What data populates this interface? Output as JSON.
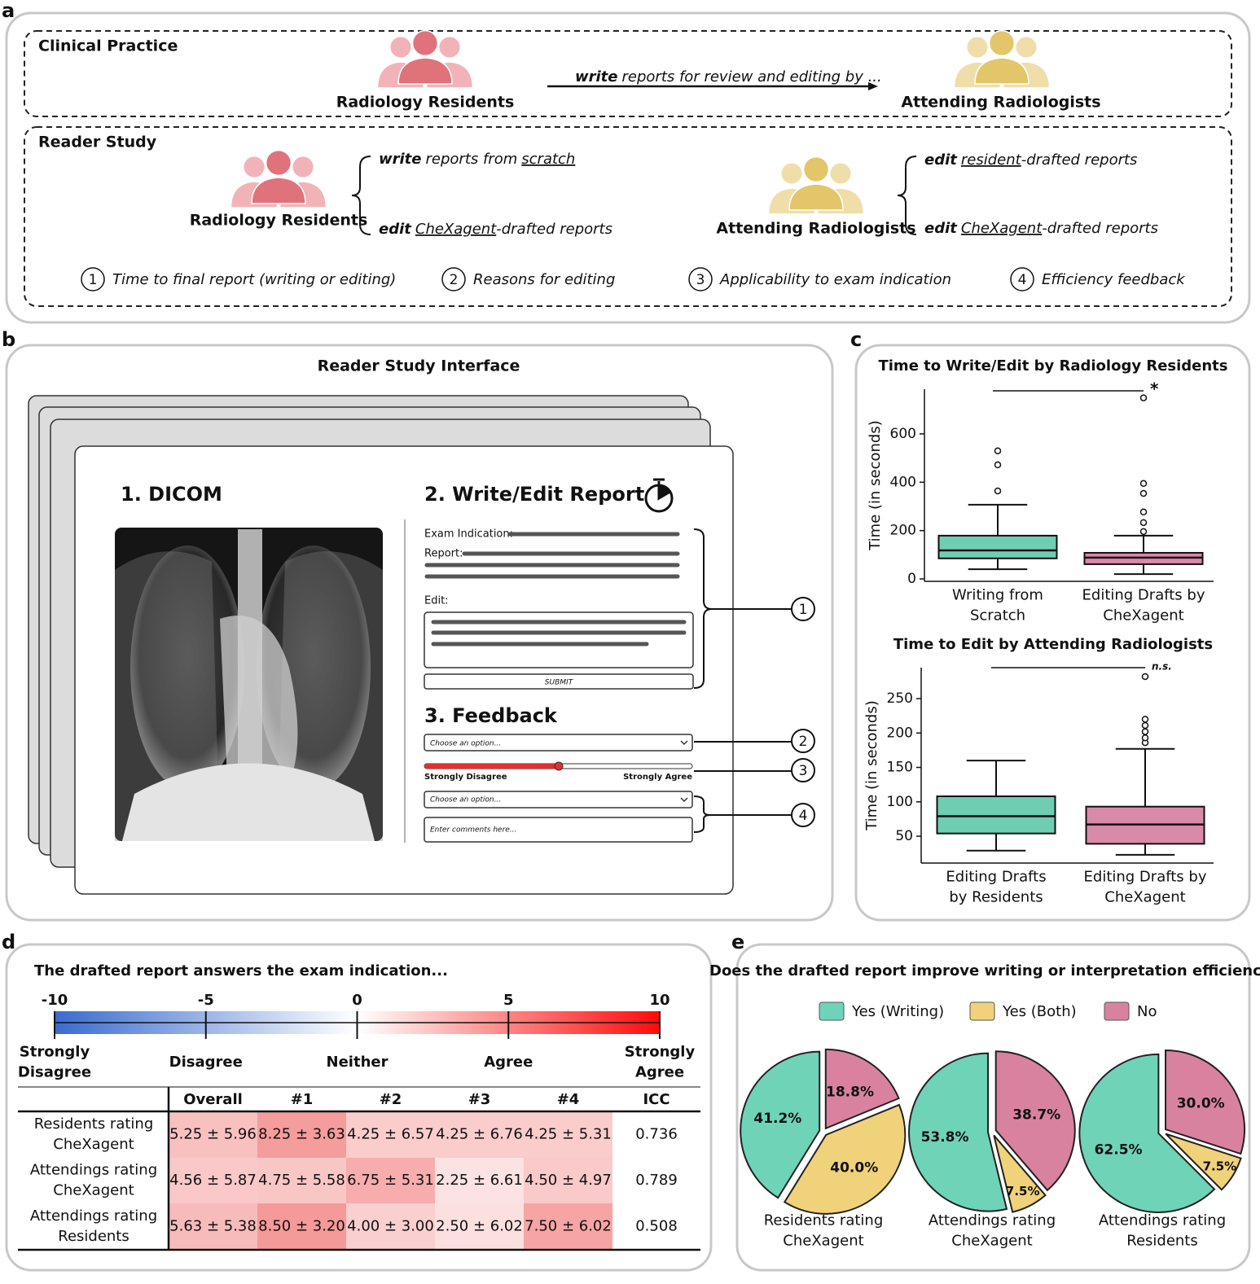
{
  "panel_labels": [
    "a",
    "b",
    "c",
    "d",
    "e"
  ],
  "clinical_practice": {
    "title": "Clinical Practice",
    "residents": "Radiology Residents",
    "arrow_verb": "write",
    "arrow_text": "reports for review and editing by ...",
    "attendings": "Attending Radiologists"
  },
  "reader_study": {
    "title": "Reader Study",
    "residents": "Radiology Residents",
    "resident_tasks": [
      {
        "verb": "write",
        "text": "reports from",
        "object": "scratch"
      },
      {
        "verb": "edit",
        "object": "CheXagent",
        "suffix": "-drafted reports"
      }
    ],
    "attendings": "Attending Radiologists",
    "attending_tasks": [
      {
        "verb": "edit",
        "object": "resident",
        "suffix": "-drafted reports"
      },
      {
        "verb": "edit",
        "object": "CheXagent",
        "suffix": "-drafted reports"
      }
    ],
    "measures": [
      {
        "number": 1,
        "label": "Time to final report (writing or editing)"
      },
      {
        "number": 2,
        "label": "Reasons for editing"
      },
      {
        "number": 3,
        "label": "Applicability to exam indication"
      },
      {
        "number": 4,
        "label": "Efficiency feedback"
      }
    ]
  },
  "interface": {
    "title": "Reader Study Interface",
    "dicom": "1. DICOM",
    "report_heading": "2. Write/Edit Report",
    "exam_indication": "Exam Indication:",
    "report": "Report:",
    "edit": "Edit:",
    "submit": "SUBMIT",
    "feedback_heading": "3. Feedback",
    "dropdown_1": "Choose an option...",
    "slider_left": "Strongly Disagree",
    "slider_right": "Strongly Agree",
    "dropdown_2": "Choose an option...",
    "comments": "Enter comments here..."
  },
  "chart_data": [
    {
      "type": "box",
      "title": "Time to Write/Edit by Radiology Residents",
      "ylabel": "Time (in seconds)",
      "categories": [
        [
          "Writing from",
          "Scratch"
        ],
        [
          "Editing Drafts by",
          "CheXagent"
        ]
      ],
      "ylim": [
        -10,
        785
      ],
      "yticks": [
        0,
        200,
        400,
        600
      ],
      "boxes": [
        {
          "whislo": 40,
          "q1": 85,
          "med": 118,
          "q3": 179,
          "whishi": 307,
          "fliers": [
            364,
            472,
            530
          ],
          "color": "#6fcdb2"
        },
        {
          "whislo": 20,
          "q1": 61,
          "med": 88,
          "q3": 108,
          "whishi": 179,
          "fliers": [
            196,
            233,
            277,
            354,
            395,
            749
          ],
          "color": "#d98aa8"
        }
      ],
      "significance": "*"
    },
    {
      "type": "box",
      "title": "Time to Edit by Attending Radiologists",
      "ylabel": "Time (in seconds)",
      "categories": [
        [
          "Editing Drafts",
          "by Residents"
        ],
        [
          "Editing Drafts by",
          "CheXagent"
        ]
      ],
      "ylim": [
        11,
        295
      ],
      "yticks": [
        50,
        100,
        150,
        200,
        250
      ],
      "boxes": [
        {
          "whislo": 29,
          "q1": 54,
          "med": 79,
          "q3": 108,
          "whishi": 160,
          "fliers": [],
          "color": "#6fcdb2"
        },
        {
          "whislo": 23,
          "q1": 39,
          "med": 67,
          "q3": 93,
          "whishi": 177,
          "fliers": [
            186,
            193,
            202,
            211,
            220,
            282
          ],
          "color": "#d98aa8"
        }
      ],
      "significance": "n.s."
    },
    {
      "type": "pie",
      "title": "Does the drafted report improve writing or interpretation efficiency?",
      "categories": [
        "Yes (Writing)",
        "Yes (Both)",
        "No"
      ],
      "colors": [
        "#6fd3b8",
        "#f0d27a",
        "#d9829f"
      ],
      "pies": [
        {
          "label": [
            "Residents rating",
            "CheXagent"
          ],
          "values": [
            41.2,
            40.0,
            18.8
          ],
          "value_labels": [
            "41.2%",
            "40.0%",
            "18.8%"
          ]
        },
        {
          "label": [
            "Attendings rating",
            "CheXagent"
          ],
          "values": [
            53.8,
            7.5,
            38.7
          ],
          "value_labels": [
            "53.8%",
            "7.5%",
            "38.7%"
          ]
        },
        {
          "label": [
            "Attendings rating",
            "Residents"
          ],
          "values": [
            62.5,
            7.5,
            30.0
          ],
          "value_labels": [
            "62.5%",
            "7.5%",
            "30.0%"
          ]
        }
      ]
    }
  ],
  "panel_d": {
    "title": "The drafted report answers the exam indication...",
    "scale": {
      "range": [
        -10,
        10
      ],
      "ticks": [
        -10,
        -5,
        0,
        5,
        10
      ],
      "labels": [
        [
          "Strongly",
          "Disagree"
        ],
        [
          "Disagree"
        ],
        [
          "Neither"
        ],
        [
          "Agree"
        ],
        [
          "Strongly",
          "Agree"
        ]
      ]
    },
    "table": {
      "header": [
        "Overall",
        "#1",
        "#2",
        "#3",
        "#4",
        "ICC"
      ],
      "rows": [
        {
          "label": [
            "Residents rating",
            "CheXagent"
          ],
          "cells": [
            "5.25 ± 5.96",
            "8.25 ± 3.63",
            "4.25 ± 6.57",
            "4.25 ± 6.76",
            "4.25 ± 5.31",
            0.736
          ]
        },
        {
          "label": [
            "Attendings rating",
            "CheXagent"
          ],
          "cells": [
            "4.56 ± 5.87",
            "4.75 ± 5.58",
            "6.75 ± 5.31",
            "2.25 ± 6.61",
            "4.50 ± 4.97",
            0.789
          ]
        },
        {
          "label": [
            "Attendings rating",
            "Residents"
          ],
          "cells": [
            "5.63 ± 5.38",
            "8.50 ± 3.20",
            "4.00 ± 3.00",
            "2.50 ± 6.02",
            "7.50 ± 6.02",
            0.508
          ]
        }
      ]
    }
  }
}
